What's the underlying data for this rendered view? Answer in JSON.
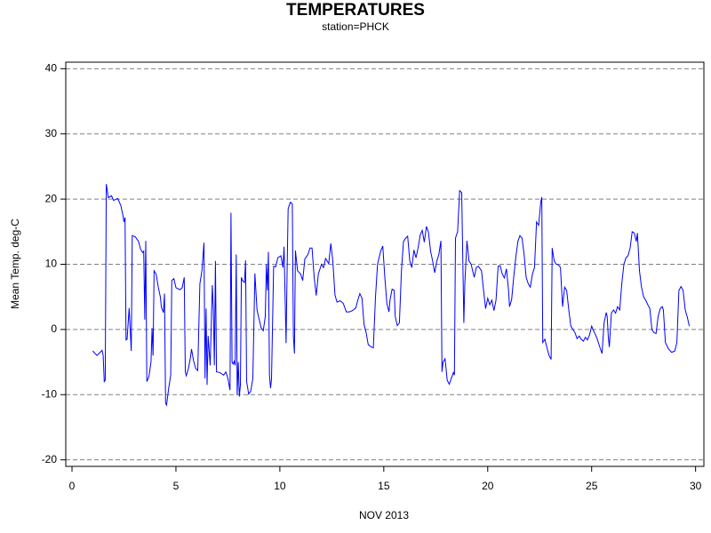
{
  "chart_data": {
    "type": "line",
    "title": "TEMPERATURES",
    "subtitle": "station=PHCK",
    "x_label": "NOV 2013",
    "y_label": "Mean Temp. deg-C",
    "xlim": [
      -0.3,
      30.4
    ],
    "ylim": [
      -21,
      41
    ],
    "xticks": [
      0,
      5,
      10,
      15,
      20,
      25,
      30
    ],
    "yticks": [
      -20,
      -10,
      0,
      10,
      20,
      30,
      40
    ],
    "grid": true,
    "x": [
      1.0,
      1.2,
      1.35,
      1.45,
      1.5,
      1.55,
      1.6,
      1.65,
      1.75,
      1.9,
      2.0,
      2.2,
      2.35,
      2.45,
      2.5,
      2.55,
      2.6,
      2.65,
      2.75,
      2.85,
      2.9,
      3.05,
      3.2,
      3.3,
      3.4,
      3.45,
      3.5,
      3.55,
      3.6,
      3.7,
      3.8,
      3.85,
      3.9,
      3.95,
      4.05,
      4.15,
      4.25,
      4.3,
      4.4,
      4.45,
      4.5,
      4.55,
      4.65,
      4.75,
      4.8,
      4.9,
      5.0,
      5.2,
      5.3,
      5.4,
      5.45,
      5.5,
      5.6,
      5.7,
      5.75,
      5.85,
      5.95,
      6.05,
      6.15,
      6.25,
      6.35,
      6.4,
      6.45,
      6.5,
      6.55,
      6.65,
      6.75,
      6.8,
      6.85,
      6.9,
      6.95,
      7.1,
      7.3,
      7.4,
      7.5,
      7.6,
      7.65,
      7.7,
      7.75,
      7.8,
      7.85,
      7.9,
      7.95,
      8.0,
      8.05,
      8.1,
      8.15,
      8.2,
      8.3,
      8.35,
      8.4,
      8.5,
      8.6,
      8.7,
      8.8,
      8.9,
      9.0,
      9.1,
      9.2,
      9.3,
      9.35,
      9.4,
      9.45,
      9.5,
      9.55,
      9.6,
      9.7,
      9.8,
      9.9,
      10.05,
      10.15,
      10.2,
      10.3,
      10.35,
      10.4,
      10.5,
      10.6,
      10.65,
      10.7,
      10.75,
      10.85,
      11.0,
      11.1,
      11.2,
      11.35,
      11.45,
      11.55,
      11.65,
      11.75,
      11.85,
      12.0,
      12.1,
      12.2,
      12.35,
      12.45,
      12.55,
      12.65,
      12.75,
      12.9,
      13.05,
      13.2,
      13.35,
      13.5,
      13.65,
      13.75,
      13.85,
      13.95,
      14.05,
      14.15,
      14.25,
      14.4,
      14.5,
      14.6,
      14.7,
      14.85,
      14.95,
      15.05,
      15.15,
      15.25,
      15.3,
      15.4,
      15.5,
      15.55,
      15.65,
      15.75,
      15.85,
      15.95,
      16.05,
      16.15,
      16.25,
      16.35,
      16.45,
      16.55,
      16.65,
      16.75,
      16.85,
      16.95,
      17.05,
      17.15,
      17.25,
      17.35,
      17.45,
      17.55,
      17.65,
      17.75,
      17.8,
      17.85,
      17.95,
      18.05,
      18.15,
      18.25,
      18.35,
      18.4,
      18.45,
      18.55,
      18.65,
      18.75,
      18.85,
      18.9,
      19.0,
      19.1,
      19.2,
      19.35,
      19.45,
      19.55,
      19.7,
      19.8,
      19.9,
      20.0,
      20.1,
      20.2,
      20.3,
      20.4,
      20.5,
      20.6,
      20.7,
      20.8,
      20.9,
      21.0,
      21.05,
      21.15,
      21.25,
      21.35,
      21.45,
      21.55,
      21.65,
      21.75,
      21.85,
      21.95,
      22.05,
      22.15,
      22.25,
      22.35,
      22.45,
      22.55,
      22.6,
      22.65,
      22.75,
      22.85,
      22.95,
      23.05,
      23.1,
      23.2,
      23.3,
      23.4,
      23.5,
      23.6,
      23.7,
      23.8,
      23.9,
      24.0,
      24.1,
      24.2,
      24.3,
      24.4,
      24.5,
      24.6,
      24.7,
      24.8,
      24.9,
      25.0,
      25.1,
      25.25,
      25.4,
      25.5,
      25.6,
      25.7,
      25.75,
      25.8,
      25.85,
      25.95,
      26.05,
      26.15,
      26.25,
      26.35,
      26.45,
      26.55,
      26.65,
      26.75,
      26.85,
      26.95,
      27.05,
      27.15,
      27.2,
      27.3,
      27.4,
      27.5,
      27.6,
      27.7,
      27.8,
      27.9,
      28.0,
      28.1,
      28.2,
      28.3,
      28.4,
      28.45,
      28.55,
      28.7,
      28.85,
      29.0,
      29.1,
      29.2,
      29.3,
      29.4,
      29.5,
      29.6,
      29.7
    ],
    "series": [
      {
        "color": "#0000ff",
        "values": [
          -3.3,
          -4.0,
          -3.5,
          -3.2,
          -4.0,
          -8.0,
          -7.8,
          22.3,
          20.2,
          20.5,
          19.8,
          20.1,
          19.0,
          17.5,
          16.5,
          17.2,
          -1.6,
          -1.5,
          3.3,
          -3.3,
          14.4,
          14.2,
          13.5,
          12.3,
          11.8,
          12.0,
          1.5,
          13.6,
          -8.0,
          -7.2,
          -5.0,
          0.2,
          -4.0,
          9.0,
          8.5,
          6.5,
          5.0,
          3.4,
          2.6,
          5.5,
          -11.3,
          -11.6,
          -9.0,
          -7.0,
          7.5,
          7.8,
          6.4,
          6.1,
          6.4,
          8.0,
          -6.5,
          -7.1,
          -6.0,
          -4.3,
          -3.0,
          -4.8,
          -6.0,
          -6.3,
          7.0,
          9.0,
          13.3,
          -7.5,
          3.2,
          -8.5,
          -1.0,
          -5.5,
          6.8,
          3.0,
          -5.5,
          10.5,
          -6.5,
          -6.6,
          -7.0,
          -6.5,
          -7.5,
          -9.3,
          17.9,
          -5.0,
          -5.3,
          -4.9,
          -5.5,
          11.5,
          -10.0,
          -5.0,
          -10.3,
          -8.5,
          8.0,
          7.5,
          7.2,
          10.6,
          -8.0,
          -9.9,
          -9.5,
          -7.5,
          8.6,
          3.0,
          1.6,
          0.3,
          -0.2,
          2.0,
          10.0,
          6.0,
          11.9,
          -7.0,
          -9.0,
          -7.6,
          9.7,
          9.6,
          11.0,
          11.3,
          9.5,
          12.7,
          -2.1,
          9.5,
          18.5,
          19.5,
          19.3,
          -1.0,
          -3.7,
          12.1,
          9.0,
          8.5,
          7.5,
          10.8,
          11.5,
          12.5,
          12.5,
          8.0,
          5.2,
          8.5,
          10.0,
          9.5,
          10.9,
          10.1,
          13.2,
          10.5,
          5.3,
          4.2,
          4.4,
          4.0,
          2.7,
          2.7,
          2.9,
          3.3,
          4.5,
          5.5,
          4.8,
          0.8,
          -0.5,
          -2.3,
          -2.7,
          -2.8,
          5.0,
          10.0,
          12.0,
          12.8,
          8.0,
          4.0,
          2.7,
          4.5,
          6.2,
          6.0,
          2.0,
          0.6,
          1.0,
          9.0,
          13.5,
          14.0,
          14.3,
          10.5,
          9.5,
          12.2,
          11.0,
          12.5,
          14.5,
          15.2,
          13.4,
          15.8,
          14.9,
          12.0,
          10.5,
          8.7,
          10.5,
          11.5,
          13.6,
          -6.5,
          -5.0,
          -4.5,
          -7.8,
          -8.4,
          -7.5,
          -6.6,
          -7.0,
          14.0,
          15.0,
          21.3,
          21.0,
          1.0,
          7.0,
          13.6,
          10.5,
          10.0,
          8.0,
          9.5,
          9.7,
          9.0,
          6.0,
          3.2,
          4.8,
          3.8,
          4.5,
          2.9,
          4.5,
          9.7,
          9.8,
          8.5,
          7.9,
          9.3,
          6.0,
          3.5,
          4.6,
          8.0,
          11.0,
          13.5,
          14.4,
          14.0,
          11.5,
          8.0,
          7.0,
          6.5,
          8.5,
          9.5,
          16.5,
          16.0,
          19.5,
          20.3,
          -2.0,
          -1.5,
          -2.8,
          -4.0,
          -4.6,
          12.5,
          10.5,
          10.0,
          9.9,
          9.5,
          3.5,
          6.5,
          6.0,
          3.0,
          0.5,
          0.0,
          -0.5,
          -1.4,
          -1.0,
          -1.5,
          -1.8,
          -1.2,
          -1.6,
          -0.8,
          0.5,
          -0.2,
          -1.3,
          -2.8,
          -3.7,
          1.0,
          2.6,
          2.0,
          -1.0,
          -2.7,
          2.5,
          3.0,
          2.5,
          3.5,
          3.0,
          7.0,
          10.0,
          11.0,
          11.3,
          12.5,
          15.0,
          14.8,
          13.5,
          14.8,
          9.0,
          6.5,
          5.0,
          4.5,
          3.8,
          3.2,
          0.0,
          -0.5,
          -0.6,
          2.0,
          3.2,
          3.5,
          3.0,
          -2.0,
          -3.0,
          -3.5,
          -3.3,
          -2.0,
          6.0,
          6.6,
          6.0,
          3.0,
          1.9,
          0.5
        ]
      }
    ]
  }
}
